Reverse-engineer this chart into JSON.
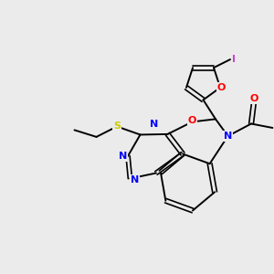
{
  "bg_color": "#ebebeb",
  "atom_colors": {
    "N": "#0000ff",
    "O": "#ff0000",
    "S": "#cccc00",
    "I": "#cc44cc",
    "C": "#000000"
  },
  "bond_color": "#000000",
  "lw": 1.4,
  "fs": 8.0
}
